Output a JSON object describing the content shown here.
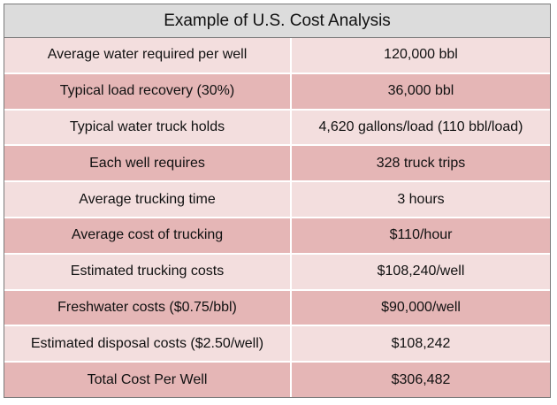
{
  "table": {
    "title": "Example of U.S. Cost Analysis",
    "colors": {
      "title_bg": "#dcdcdc",
      "row_light": "#f3dede",
      "row_dark": "#e5b6b6",
      "border": "#7a7a7a"
    },
    "rows": [
      {
        "label": "Average water required per well",
        "value": "120,000 bbl"
      },
      {
        "label": "Typical load recovery (30%)",
        "value": "36,000 bbl"
      },
      {
        "label": "Typical water truck holds",
        "value": "4,620 gallons/load (110 bbl/load)"
      },
      {
        "label": "Each well requires",
        "value": "328 truck trips"
      },
      {
        "label": "Average trucking time",
        "value": "3 hours"
      },
      {
        "label": "Average cost of trucking",
        "value": "$110/hour"
      },
      {
        "label": "Estimated trucking costs",
        "value": "$108,240/well"
      },
      {
        "label": "Freshwater costs ($0.75/bbl)",
        "value": "$90,000/well"
      },
      {
        "label": "Estimated disposal costs ($2.50/well)",
        "value": "$108,242"
      },
      {
        "label": "Total Cost Per Well",
        "value": "$306,482"
      }
    ]
  }
}
